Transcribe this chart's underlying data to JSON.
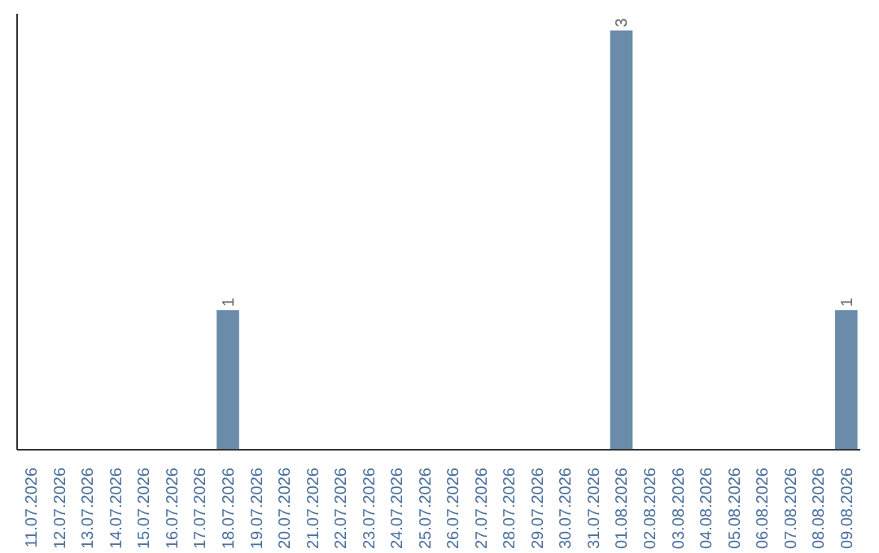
{
  "chart_data": {
    "type": "bar",
    "categories": [
      "11.07.2026",
      "12.07.2026",
      "13.07.2026",
      "14.07.2026",
      "15.07.2026",
      "16.07.2026",
      "17.07.2026",
      "18.07.2026",
      "19.07.2026",
      "20.07.2026",
      "21.07.2026",
      "22.07.2026",
      "23.07.2026",
      "24.07.2026",
      "25.07.2026",
      "26.07.2026",
      "27.07.2026",
      "28.07.2026",
      "29.07.2026",
      "30.07.2026",
      "31.07.2026",
      "01.08.2026",
      "02.08.2026",
      "03.08.2026",
      "04.08.2026",
      "05.08.2026",
      "06.08.2026",
      "07.08.2026",
      "08.08.2026",
      "09.08.2026"
    ],
    "values": [
      0,
      0,
      0,
      0,
      0,
      0,
      0,
      1,
      0,
      0,
      0,
      0,
      0,
      0,
      0,
      0,
      0,
      0,
      0,
      0,
      0,
      3,
      0,
      0,
      0,
      0,
      0,
      0,
      0,
      1
    ],
    "value_labels": [
      null,
      null,
      null,
      null,
      null,
      null,
      null,
      "1",
      null,
      null,
      null,
      null,
      null,
      null,
      null,
      null,
      null,
      null,
      null,
      null,
      null,
      "3",
      null,
      null,
      null,
      null,
      null,
      null,
      null,
      "1"
    ],
    "color": "#6b8bab",
    "grid": false
  }
}
